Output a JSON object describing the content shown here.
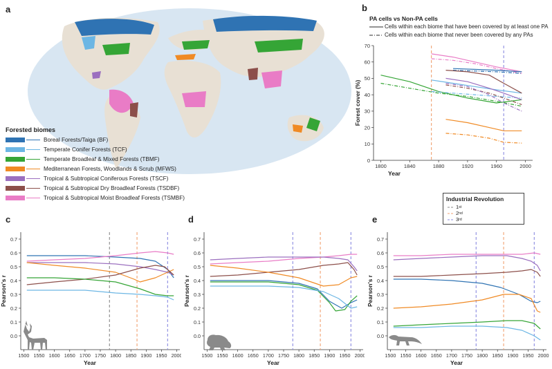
{
  "panels": {
    "a": "a",
    "b": "b",
    "c": "c",
    "d": "d",
    "e": "e"
  },
  "colors": {
    "BF": "#2f73b3",
    "TCF": "#6cb6e4",
    "TBMF": "#35a536",
    "MFWS": "#f08a24",
    "TSCF": "#9b6fbf",
    "TSDBF": "#8c4f4a",
    "TSMBF": "#e97cc6",
    "ocean": "#d8e6f2",
    "land": "#e8e0d4"
  },
  "map_legend": {
    "title": "Forested biomes",
    "items": [
      {
        "key": "BF",
        "label": "Boreal Forests/Taiga (BF)"
      },
      {
        "key": "TCF",
        "label": "Temperate Conifer Forests (TCF)"
      },
      {
        "key": "TBMF",
        "label": "Temperate Broadleaf & Mixed Forests (TBMF)"
      },
      {
        "key": "MFWS",
        "label": "Mediterranean Forests, Woodlands & Scrub (MFWS)"
      },
      {
        "key": "TSCF",
        "label": "Tropical & Subtropical Coniferous Forests (TSCF)"
      },
      {
        "key": "TSDBF",
        "label": "Tropical & Subtropical Dry Broadleaf Forests (TSDBF)"
      },
      {
        "key": "TSMBF",
        "label": "Tropical & Subtropical Moist Broadleaf Forests (TSMBF)"
      }
    ]
  },
  "b_legend": {
    "title": "PA cells vs Non-PA cells",
    "solid": "Cells within each biome that have been covered by at least one PA",
    "dashed": "Cells within each biome that never been covered by any PAs"
  },
  "ir_legend": {
    "title": "Industrial  Revolution",
    "items": [
      {
        "label": "1",
        "sup": "st",
        "color": "#888888"
      },
      {
        "label": "2",
        "sup": "nd",
        "color": "#f0a070"
      },
      {
        "label": "3",
        "sup": "rd",
        "color": "#8a8ae0"
      }
    ]
  },
  "chart_data": [
    {
      "panel": "b",
      "type": "line",
      "xlabel": "Year",
      "ylabel": "Forest cover (%)",
      "xlim": [
        1790,
        2010
      ],
      "ylim": [
        0,
        70
      ],
      "xticks": [
        1800,
        1840,
        1880,
        1920,
        1960,
        2000
      ],
      "yticks": [
        0,
        10,
        20,
        30,
        40,
        50,
        60,
        70
      ],
      "vlines": [
        {
          "x": 1870,
          "color": "#f0a070"
        },
        {
          "x": 1970,
          "color": "#8a8ae0"
        }
      ],
      "series": [
        {
          "key": "TBMF",
          "style": "solid",
          "x": [
            1800,
            1840,
            1880,
            1920,
            1960,
            1995
          ],
          "y": [
            52,
            48,
            42,
            38,
            35,
            37
          ]
        },
        {
          "key": "TBMF",
          "style": "dashed",
          "x": [
            1800,
            1840,
            1880,
            1920,
            1960,
            1995
          ],
          "y": [
            47,
            44,
            41,
            39,
            36,
            33
          ]
        },
        {
          "key": "TSMBF",
          "style": "solid",
          "x": [
            1870,
            1900,
            1930,
            1960,
            1995
          ],
          "y": [
            65,
            63,
            60,
            57,
            54
          ]
        },
        {
          "key": "TSMBF",
          "style": "dashed",
          "x": [
            1870,
            1900,
            1930,
            1960,
            1995
          ],
          "y": [
            62,
            61,
            59,
            56,
            53
          ]
        },
        {
          "key": "BF",
          "style": "solid",
          "x": [
            1900,
            1930,
            1960,
            1995
          ],
          "y": [
            56,
            55.5,
            55,
            54
          ]
        },
        {
          "key": "BF",
          "style": "dashed",
          "x": [
            1900,
            1930,
            1960,
            1995
          ],
          "y": [
            55,
            54.5,
            54,
            53
          ]
        },
        {
          "key": "TCF",
          "style": "solid",
          "x": [
            1870,
            1900,
            1930,
            1960,
            1995
          ],
          "y": [
            49,
            47,
            45,
            43,
            41
          ]
        },
        {
          "key": "TCF",
          "style": "dashed",
          "x": [
            1870,
            1900,
            1930,
            1960,
            1995
          ],
          "y": [
            42,
            41,
            40,
            39,
            38
          ]
        },
        {
          "key": "TSDBF",
          "style": "solid",
          "x": [
            1890,
            1920,
            1950,
            1970,
            1995
          ],
          "y": [
            55,
            54,
            52,
            47,
            41
          ]
        },
        {
          "key": "TSDBF",
          "style": "dashed",
          "x": [
            1890,
            1920,
            1950,
            1970,
            1995
          ],
          "y": [
            46,
            44,
            41,
            38,
            34
          ]
        },
        {
          "key": "TSCF",
          "style": "solid",
          "x": [
            1890,
            1920,
            1950,
            1970,
            1995
          ],
          "y": [
            50,
            48,
            44,
            41,
            37
          ]
        },
        {
          "key": "TSCF",
          "style": "dashed",
          "x": [
            1890,
            1920,
            1950,
            1970,
            1995
          ],
          "y": [
            47,
            45,
            40,
            35,
            30
          ]
        },
        {
          "key": "MFWS",
          "style": "solid",
          "x": [
            1890,
            1920,
            1950,
            1970,
            1995
          ],
          "y": [
            25,
            23,
            20,
            18,
            18
          ]
        },
        {
          "key": "MFWS",
          "style": "dashed",
          "x": [
            1890,
            1920,
            1950,
            1970,
            1995
          ],
          "y": [
            16.5,
            15.5,
            13.5,
            11,
            10.5
          ]
        }
      ]
    },
    {
      "panel": "c",
      "type": "line",
      "xlabel": "Year",
      "ylabel": "Pearson's r",
      "xlim": [
        1490,
        2010
      ],
      "ylim": [
        -0.1,
        0.75
      ],
      "xticks": [
        1500,
        1550,
        1600,
        1650,
        1700,
        1750,
        1800,
        1850,
        1900,
        1950,
        2000
      ],
      "yticks": [
        0.0,
        0.1,
        0.2,
        0.3,
        0.4,
        0.5,
        0.6,
        0.7
      ],
      "vlines": [
        {
          "x": 1780,
          "color": "#888888"
        },
        {
          "x": 1870,
          "color": "#f0a070"
        },
        {
          "x": 1970,
          "color": "#8a8ae0"
        }
      ],
      "series": [
        {
          "key": "BF",
          "x": [
            1510,
            1600,
            1700,
            1800,
            1880,
            1930,
            1970,
            1990
          ],
          "y": [
            0.58,
            0.58,
            0.58,
            0.57,
            0.56,
            0.54,
            0.48,
            0.42
          ]
        },
        {
          "key": "TSMBF",
          "x": [
            1510,
            1600,
            1700,
            1800,
            1880,
            1930,
            1970,
            1990
          ],
          "y": [
            0.54,
            0.55,
            0.56,
            0.58,
            0.6,
            0.61,
            0.6,
            0.59
          ]
        },
        {
          "key": "TSCF",
          "x": [
            1510,
            1600,
            1700,
            1800,
            1880,
            1930,
            1970,
            1990
          ],
          "y": [
            0.53,
            0.53,
            0.53,
            0.52,
            0.5,
            0.48,
            0.46,
            0.44
          ]
        },
        {
          "key": "MFWS",
          "x": [
            1510,
            1600,
            1700,
            1800,
            1860,
            1880,
            1930,
            1970,
            1990
          ],
          "y": [
            0.53,
            0.51,
            0.49,
            0.46,
            0.41,
            0.39,
            0.42,
            0.46,
            0.48
          ]
        },
        {
          "key": "TSDBF",
          "x": [
            1510,
            1600,
            1700,
            1800,
            1880,
            1930,
            1960,
            1990
          ],
          "y": [
            0.37,
            0.39,
            0.41,
            0.44,
            0.49,
            0.51,
            0.5,
            0.44
          ]
        },
        {
          "key": "TBMF",
          "x": [
            1510,
            1600,
            1700,
            1800,
            1880,
            1930,
            1970,
            1990
          ],
          "y": [
            0.42,
            0.42,
            0.41,
            0.39,
            0.34,
            0.3,
            0.29,
            0.29
          ]
        },
        {
          "key": "TCF",
          "x": [
            1510,
            1600,
            1700,
            1800,
            1880,
            1930,
            1970,
            1990
          ],
          "y": [
            0.33,
            0.33,
            0.33,
            0.31,
            0.3,
            0.29,
            0.28,
            0.26
          ]
        }
      ]
    },
    {
      "panel": "d",
      "type": "line",
      "xlabel": "Year",
      "ylabel": "Pearson's r",
      "xlim": [
        1490,
        2010
      ],
      "ylim": [
        -0.1,
        0.75
      ],
      "xticks": [
        1500,
        1550,
        1600,
        1650,
        1700,
        1750,
        1800,
        1850,
        1900,
        1950,
        2000
      ],
      "yticks": [
        0.0,
        0.1,
        0.2,
        0.3,
        0.4,
        0.5,
        0.6,
        0.7
      ],
      "vlines": [
        {
          "x": 1780,
          "color": "#8a8ae0"
        },
        {
          "x": 1870,
          "color": "#f0a070"
        },
        {
          "x": 1970,
          "color": "#8a8ae0"
        }
      ],
      "series": [
        {
          "key": "TSMBF",
          "x": [
            1510,
            1600,
            1700,
            1800,
            1880,
            1930,
            1970,
            1990
          ],
          "y": [
            0.52,
            0.53,
            0.54,
            0.56,
            0.57,
            0.58,
            0.59,
            0.59
          ]
        },
        {
          "key": "TSCF",
          "x": [
            1510,
            1600,
            1700,
            1800,
            1880,
            1930,
            1960,
            1980,
            1990
          ],
          "y": [
            0.55,
            0.56,
            0.57,
            0.57,
            0.57,
            0.56,
            0.55,
            0.5,
            0.47
          ]
        },
        {
          "key": "TSDBF",
          "x": [
            1510,
            1600,
            1700,
            1800,
            1880,
            1930,
            1960,
            1980,
            1990
          ],
          "y": [
            0.43,
            0.44,
            0.46,
            0.48,
            0.51,
            0.52,
            0.53,
            0.48,
            0.44
          ]
        },
        {
          "key": "MFWS",
          "x": [
            1510,
            1600,
            1700,
            1800,
            1880,
            1930,
            1970,
            1990
          ],
          "y": [
            0.51,
            0.49,
            0.46,
            0.42,
            0.36,
            0.37,
            0.42,
            0.43
          ]
        },
        {
          "key": "BF",
          "x": [
            1510,
            1600,
            1700,
            1800,
            1860,
            1900,
            1940,
            1970,
            1990
          ],
          "y": [
            0.4,
            0.4,
            0.4,
            0.38,
            0.34,
            0.25,
            0.2,
            0.24,
            0.26
          ]
        },
        {
          "key": "TBMF",
          "x": [
            1510,
            1600,
            1700,
            1800,
            1860,
            1900,
            1920,
            1950,
            1970,
            1990
          ],
          "y": [
            0.39,
            0.39,
            0.39,
            0.37,
            0.33,
            0.24,
            0.18,
            0.19,
            0.25,
            0.29
          ]
        },
        {
          "key": "TCF",
          "x": [
            1510,
            1600,
            1700,
            1800,
            1880,
            1930,
            1970,
            1990
          ],
          "y": [
            0.36,
            0.36,
            0.36,
            0.35,
            0.32,
            0.27,
            0.2,
            0.21
          ]
        }
      ]
    },
    {
      "panel": "e",
      "type": "line",
      "xlabel": "Year",
      "ylabel": "Pearson's r",
      "xlim": [
        1490,
        2010
      ],
      "ylim": [
        -0.1,
        0.75
      ],
      "xticks": [
        1500,
        1550,
        1600,
        1650,
        1700,
        1750,
        1800,
        1850,
        1900,
        1950,
        2000
      ],
      "yticks": [
        0.0,
        0.1,
        0.2,
        0.3,
        0.4,
        0.5,
        0.6,
        0.7
      ],
      "vlines": [
        {
          "x": 1780,
          "color": "#8a8ae0"
        },
        {
          "x": 1870,
          "color": "#f0a070"
        },
        {
          "x": 1970,
          "color": "#8a8ae0"
        }
      ],
      "series": [
        {
          "key": "TSMBF",
          "x": [
            1510,
            1600,
            1700,
            1800,
            1880,
            1930,
            1970,
            1990
          ],
          "y": [
            0.58,
            0.58,
            0.59,
            0.59,
            0.59,
            0.59,
            0.6,
            0.59
          ]
        },
        {
          "key": "TSCF",
          "x": [
            1510,
            1600,
            1700,
            1800,
            1880,
            1930,
            1960,
            1980,
            1990
          ],
          "y": [
            0.55,
            0.56,
            0.57,
            0.58,
            0.58,
            0.56,
            0.54,
            0.51,
            0.47
          ]
        },
        {
          "key": "TSDBF",
          "x": [
            1510,
            1600,
            1700,
            1800,
            1880,
            1930,
            1960,
            1980,
            1990
          ],
          "y": [
            0.43,
            0.43,
            0.44,
            0.45,
            0.46,
            0.47,
            0.48,
            0.46,
            0.43
          ]
        },
        {
          "key": "BF",
          "x": [
            1510,
            1600,
            1700,
            1800,
            1860,
            1920,
            1960,
            1980,
            1990
          ],
          "y": [
            0.41,
            0.41,
            0.4,
            0.38,
            0.35,
            0.3,
            0.25,
            0.24,
            0.25
          ]
        },
        {
          "key": "MFWS",
          "x": [
            1510,
            1600,
            1700,
            1800,
            1870,
            1920,
            1960,
            1980,
            1990
          ],
          "y": [
            0.2,
            0.21,
            0.23,
            0.26,
            0.3,
            0.3,
            0.27,
            0.18,
            0.17
          ]
        },
        {
          "key": "TBMF",
          "x": [
            1510,
            1600,
            1700,
            1800,
            1880,
            1930,
            1970,
            1990
          ],
          "y": [
            0.07,
            0.08,
            0.09,
            0.1,
            0.11,
            0.11,
            0.09,
            0.05
          ]
        },
        {
          "key": "TCF",
          "x": [
            1510,
            1600,
            1700,
            1800,
            1880,
            1930,
            1970,
            1990
          ],
          "y": [
            0.06,
            0.06,
            0.07,
            0.07,
            0.06,
            0.04,
            0.0,
            -0.03
          ]
        }
      ]
    }
  ]
}
